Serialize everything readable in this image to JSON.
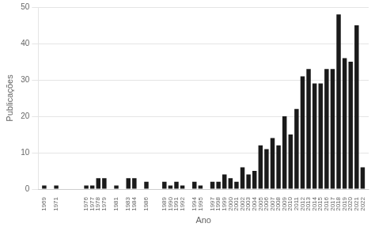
{
  "chart_data": {
    "type": "bar",
    "x": [
      1969,
      1971,
      1976,
      1977,
      1978,
      1979,
      1981,
      1983,
      1984,
      1986,
      1989,
      1990,
      1991,
      1992,
      1994,
      1995,
      1997,
      1998,
      1999,
      2000,
      2001,
      2002,
      2003,
      2004,
      2005,
      2006,
      2007,
      2008,
      2009,
      2010,
      2011,
      2012,
      2013,
      2014,
      2015,
      2016,
      2017,
      2018,
      2019,
      2020,
      2021,
      2022
    ],
    "values": [
      1,
      1,
      1,
      1,
      3,
      3,
      1,
      3,
      3,
      2,
      2,
      1,
      2,
      1,
      2,
      1,
      2,
      2,
      4,
      3,
      2,
      6,
      4,
      5,
      12,
      11,
      14,
      12,
      20,
      15,
      22,
      31,
      33,
      29,
      29,
      33,
      33,
      48,
      36,
      35,
      45,
      6
    ],
    "color": "#1a1a1a",
    "xlabel": "Ano",
    "ylabel": "Publicações",
    "xlim": [
      1968,
      2023
    ],
    "xticks": [
      1969,
      1971,
      1976,
      1977,
      1978,
      1979,
      1981,
      1983,
      1984,
      1986,
      1989,
      1990,
      1991,
      1992,
      1994,
      1995,
      1997,
      1998,
      1999,
      2000,
      2001,
      2002,
      2003,
      2004,
      2005,
      2006,
      2007,
      2008,
      2009,
      2010,
      2011,
      2012,
      2013,
      2014,
      2015,
      2016,
      2017,
      2018,
      2019,
      2020,
      2021,
      2022
    ],
    "ylim": [
      0,
      50
    ],
    "yticks": [
      0,
      10,
      20,
      30,
      40,
      50
    ],
    "grid": "y"
  }
}
